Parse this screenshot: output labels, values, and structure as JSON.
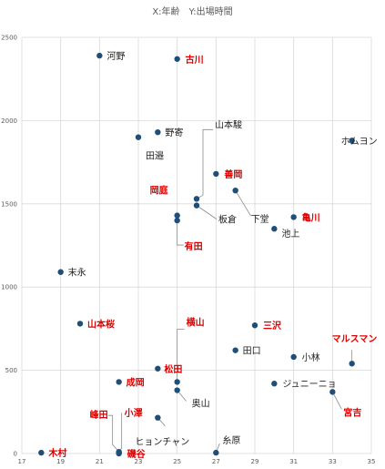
{
  "chart_data": {
    "type": "scatter",
    "title": "X:年齢　Y:出場時間",
    "xlim": [
      17,
      35
    ],
    "ylim": [
      0,
      2500
    ],
    "xticks": [
      17,
      19,
      21,
      23,
      25,
      27,
      29,
      31,
      33,
      35
    ],
    "yticks": [
      0,
      500,
      1000,
      1500,
      2000,
      2500
    ],
    "grid": true,
    "marker_color": "#1f4e79",
    "points": [
      {
        "label": "河野",
        "x": 21,
        "y": 2390,
        "highlight": false
      },
      {
        "label": "古川",
        "x": 25,
        "y": 2370,
        "highlight": true
      },
      {
        "label": "野寄",
        "x": 24,
        "y": 1930,
        "highlight": false
      },
      {
        "label": "田邉",
        "x": 23,
        "y": 1900,
        "highlight": false
      },
      {
        "label": "山本駿",
        "x": 26,
        "y": 1530,
        "highlight": false
      },
      {
        "label": "ホムヨン",
        "x": 34,
        "y": 1880,
        "highlight": false
      },
      {
        "label": "善岡",
        "x": 27,
        "y": 1680,
        "highlight": true
      },
      {
        "label": "下堂",
        "x": 28,
        "y": 1580,
        "highlight": false
      },
      {
        "label": "岡庭",
        "x": 25,
        "y": 1430,
        "highlight": true
      },
      {
        "label": "板倉",
        "x": 26,
        "y": 1490,
        "highlight": false
      },
      {
        "label": "亀川",
        "x": 31,
        "y": 1420,
        "highlight": true
      },
      {
        "label": "池上",
        "x": 30,
        "y": 1350,
        "highlight": false
      },
      {
        "label": "有田",
        "x": 25,
        "y": 1400,
        "highlight": true
      },
      {
        "label": "末永",
        "x": 19,
        "y": 1090,
        "highlight": false
      },
      {
        "label": "山本桜",
        "x": 20,
        "y": 780,
        "highlight": true
      },
      {
        "label": "三沢",
        "x": 29,
        "y": 770,
        "highlight": true
      },
      {
        "label": "横山",
        "x": 25,
        "y": 430,
        "highlight": true
      },
      {
        "label": "田口",
        "x": 28,
        "y": 620,
        "highlight": false
      },
      {
        "label": "小林",
        "x": 31,
        "y": 580,
        "highlight": false
      },
      {
        "label": "マルスマン",
        "x": 34,
        "y": 540,
        "highlight": true
      },
      {
        "label": "松田",
        "x": 24,
        "y": 510,
        "highlight": true
      },
      {
        "label": "成岡",
        "x": 22,
        "y": 430,
        "highlight": true
      },
      {
        "label": "ジュニーニョ",
        "x": 30,
        "y": 420,
        "highlight": false
      },
      {
        "label": "奥山",
        "x": 25,
        "y": 380,
        "highlight": false
      },
      {
        "label": "宮吉",
        "x": 33,
        "y": 370,
        "highlight": true
      },
      {
        "label": "ヒョンチャン",
        "x": 24,
        "y": 215,
        "highlight": false
      },
      {
        "label": "峰田",
        "x": 22,
        "y": 10,
        "highlight": true
      },
      {
        "label": "小澤",
        "x": 22,
        "y": 5,
        "highlight": true
      },
      {
        "label": "糸原",
        "x": 27,
        "y": 5,
        "highlight": false
      },
      {
        "label": "木村",
        "x": 18,
        "y": 5,
        "highlight": true
      },
      {
        "label": "磯谷",
        "x": 22,
        "y": 0,
        "highlight": true
      }
    ]
  }
}
